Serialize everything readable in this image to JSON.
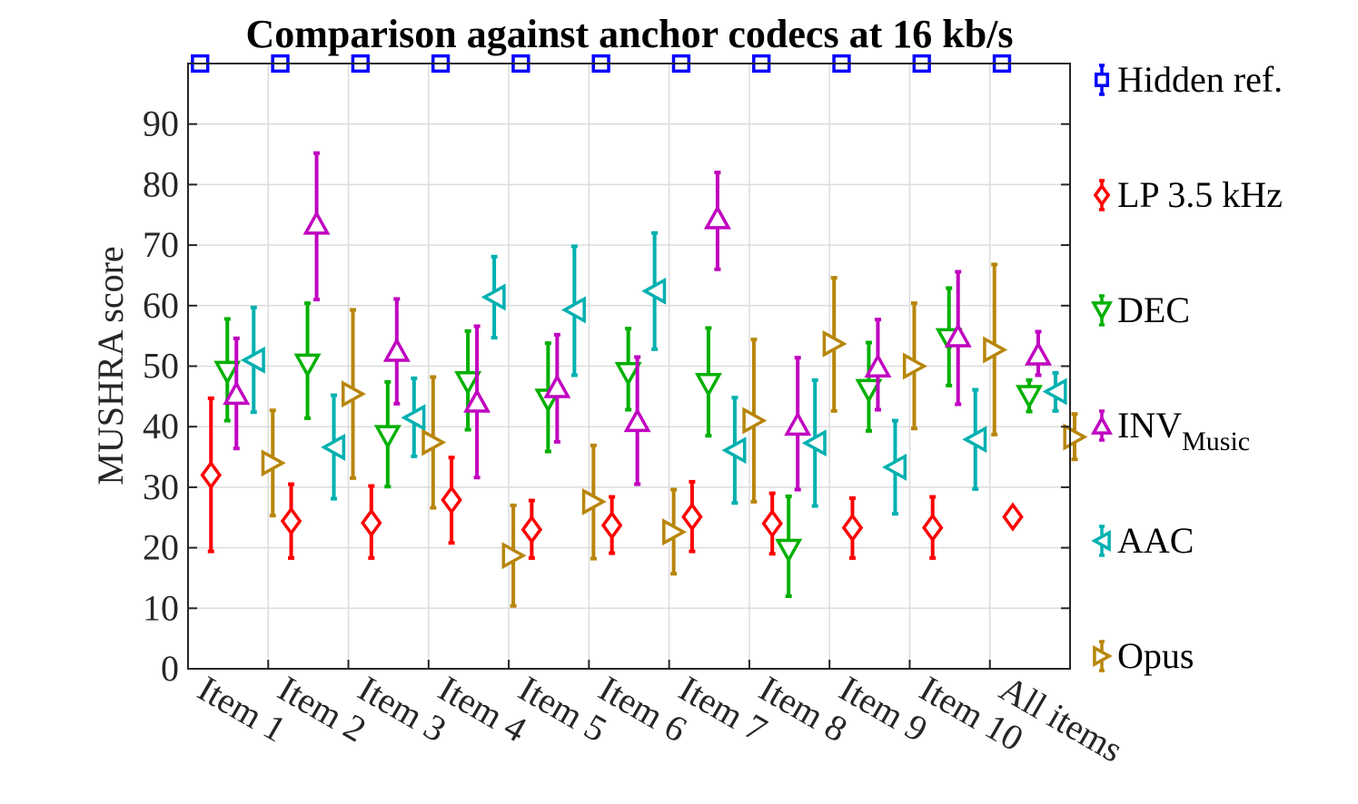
{
  "chart_data": {
    "type": "scatter",
    "title": "Comparison against anchor codecs at 16 kb/s",
    "ylabel": "MUSHRA score",
    "xlabel": "",
    "ylim": [
      0,
      100
    ],
    "yticks": [
      0,
      10,
      20,
      30,
      40,
      50,
      60,
      70,
      80,
      90
    ],
    "categories": [
      "Item 1",
      "Item 2",
      "Item 3",
      "Item 4",
      "Item 5",
      "Item 6",
      "Item 7",
      "Item 8",
      "Item 9",
      "Item 10",
      "All items"
    ],
    "grid": true,
    "legend_position": "outside-right",
    "series": [
      {
        "name": "Hidden ref.",
        "name_sub": "",
        "marker": "square",
        "color": "#0000ff",
        "values": [
          100,
          100,
          100,
          100,
          100,
          100,
          100,
          100,
          100,
          100,
          100
        ],
        "low": [
          null,
          null,
          null,
          null,
          null,
          null,
          null,
          null,
          null,
          null,
          null
        ],
        "high": [
          null,
          null,
          null,
          null,
          null,
          null,
          null,
          null,
          null,
          null,
          null
        ]
      },
      {
        "name": "LP 3.5 kHz",
        "name_sub": "",
        "marker": "diamond",
        "color": "#ff0000",
        "values": [
          32,
          24.4,
          24.1,
          27.9,
          23,
          23.7,
          25.1,
          24,
          23.3,
          23.3,
          25.1
        ],
        "low": [
          19.4,
          18.3,
          18.3,
          20.8,
          18.3,
          19.1,
          19.4,
          19,
          18.3,
          18.3,
          null
        ],
        "high": [
          44.7,
          30.5,
          30.2,
          34.9,
          27.8,
          28.4,
          30.9,
          29,
          28.2,
          28.4,
          null
        ]
      },
      {
        "name": "DEC",
        "name_sub": "",
        "marker": "triangle-down",
        "color": "#00b000",
        "values": [
          49,
          50.2,
          38.4,
          47.3,
          44.4,
          48.8,
          47,
          19.6,
          46,
          54.4,
          45
        ],
        "low": [
          41,
          41.4,
          30.1,
          39.5,
          35.9,
          42.8,
          38.5,
          12,
          39.3,
          46.8,
          42.5
        ],
        "high": [
          57.8,
          60.4,
          47.4,
          55.8,
          53.8,
          56.2,
          56.3,
          28.5,
          53.9,
          62.9,
          47.7
        ]
      },
      {
        "name": "INV",
        "name_sub": "Music",
        "marker": "triangle-up",
        "color": "#c000c0",
        "values": [
          45.5,
          73.6,
          52.6,
          44.2,
          46.6,
          41,
          74.5,
          40.4,
          50,
          55,
          52
        ],
        "low": [
          36.4,
          61,
          43.8,
          31.6,
          37.5,
          30.5,
          66,
          29.6,
          42.8,
          43.7,
          48.5
        ],
        "high": [
          54.6,
          85.2,
          61.1,
          56.6,
          55.2,
          51.5,
          82,
          51.4,
          57.7,
          65.6,
          55.7
        ]
      },
      {
        "name": "AAC",
        "name_sub": "",
        "marker": "triangle-left",
        "color": "#00b0b0",
        "values": [
          51,
          36.6,
          41.5,
          61.4,
          59.3,
          62.4,
          36.1,
          37.3,
          33.3,
          37.9,
          45.8
        ],
        "low": [
          42.4,
          28.1,
          35.1,
          54.7,
          48.5,
          52.8,
          27.4,
          26.9,
          25.6,
          29.7,
          42.6
        ],
        "high": [
          59.7,
          45.2,
          48,
          68.1,
          69.8,
          72,
          44.8,
          47.7,
          41,
          46.1,
          48.9
        ]
      },
      {
        "name": "Opus",
        "name_sub": "",
        "marker": "triangle-right",
        "color": "#b8860b",
        "values": [
          34,
          45.4,
          37.4,
          18.7,
          27.6,
          22.6,
          41,
          53.7,
          50,
          52.7,
          38.3
        ],
        "low": [
          25.3,
          31.5,
          26.6,
          10.4,
          18.2,
          15.7,
          27.6,
          42.6,
          39.7,
          38.7,
          34.6
        ],
        "high": [
          42.7,
          59.3,
          48.2,
          27,
          36.9,
          29.6,
          54.4,
          64.6,
          60.4,
          66.8,
          42.1
        ]
      }
    ]
  }
}
